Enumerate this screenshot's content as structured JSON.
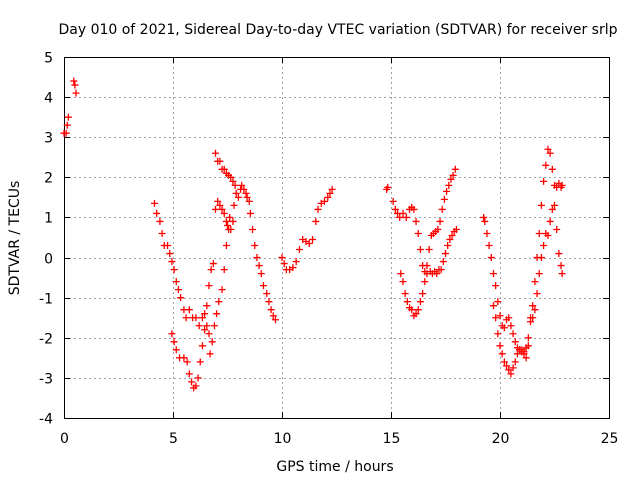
{
  "chart_data": {
    "type": "scatter",
    "title": "Day 010 of 2021, Sidereal Day-to-day VTEC variation (SDTVAR) for receiver srlp",
    "xlabel": "GPS time / hours",
    "ylabel": "SDTVAR / TECUs",
    "xlim": [
      0,
      25
    ],
    "ylim": [
      -4,
      5
    ],
    "xticks": [
      0,
      5,
      10,
      15,
      20,
      25
    ],
    "xtick_labels": [
      "0",
      "5",
      "10",
      "15",
      "20",
      "25"
    ],
    "yticks": [
      -4,
      -3,
      -2,
      -1,
      0,
      1,
      2,
      3,
      4,
      5
    ],
    "ytick_labels": [
      "-4",
      "-3",
      "-2",
      "-1",
      "0",
      "1",
      "2",
      "3",
      "4",
      "5"
    ],
    "grid": true,
    "marker": "plus",
    "color": "#ff0000",
    "series": [
      {
        "segments": [
          [
            [
              0.0,
              3.1
            ],
            [
              0.1,
              3.1
            ],
            [
              0.15,
              3.3
            ],
            [
              0.2,
              3.5
            ]
          ],
          [
            [
              0.45,
              4.4
            ],
            [
              0.5,
              4.3
            ],
            [
              0.55,
              4.1
            ]
          ],
          [
            [
              4.15,
              1.35
            ],
            [
              4.25,
              1.1
            ],
            [
              4.4,
              0.9
            ],
            [
              4.5,
              0.6
            ],
            [
              4.6,
              0.3
            ],
            [
              4.75,
              0.3
            ],
            [
              4.85,
              0.1
            ],
            [
              4.95,
              -0.1
            ],
            [
              5.05,
              -0.3
            ],
            [
              5.15,
              -0.6
            ],
            [
              5.25,
              -0.8
            ],
            [
              5.35,
              -1.0
            ],
            [
              5.5,
              -1.3
            ],
            [
              5.6,
              -1.5
            ],
            [
              5.75,
              -1.3
            ],
            [
              5.9,
              -1.5
            ],
            [
              6.05,
              -1.5
            ],
            [
              6.2,
              -1.7
            ],
            [
              6.35,
              -1.5
            ],
            [
              6.45,
              -1.4
            ],
            [
              6.55,
              -1.7
            ],
            [
              6.65,
              -1.9
            ]
          ],
          [
            [
              4.95,
              -1.9
            ],
            [
              5.05,
              -2.1
            ],
            [
              5.15,
              -2.3
            ],
            [
              5.3,
              -2.5
            ],
            [
              5.5,
              -2.5
            ],
            [
              5.65,
              -2.6
            ],
            [
              5.75,
              -2.9
            ],
            [
              5.85,
              -3.1
            ],
            [
              5.95,
              -3.25
            ],
            [
              6.05,
              -3.2
            ],
            [
              6.15,
              -3.0
            ],
            [
              6.25,
              -2.6
            ],
            [
              6.35,
              -2.2
            ],
            [
              6.45,
              -1.8
            ],
            [
              6.55,
              -1.2
            ],
            [
              6.65,
              -0.7
            ],
            [
              6.75,
              -0.3
            ],
            [
              6.85,
              -0.15
            ]
          ],
          [
            [
              6.7,
              -2.4
            ],
            [
              6.8,
              -2.1
            ],
            [
              6.9,
              -1.7
            ],
            [
              7.0,
              -1.4
            ],
            [
              7.1,
              -1.1
            ],
            [
              7.25,
              -0.8
            ],
            [
              7.35,
              -0.3
            ],
            [
              7.45,
              0.3
            ],
            [
              7.5,
              0.8
            ],
            [
              7.6,
              1.0
            ],
            [
              7.65,
              0.7
            ],
            [
              7.75,
              0.9
            ],
            [
              7.8,
              1.3
            ],
            [
              7.9,
              1.6
            ],
            [
              8.0,
              1.5
            ],
            [
              8.1,
              1.7
            ],
            [
              8.15,
              1.8
            ],
            [
              8.25,
              1.7
            ],
            [
              8.35,
              1.6
            ],
            [
              8.4,
              1.5
            ],
            [
              8.5,
              1.4
            ],
            [
              8.55,
              1.1
            ],
            [
              8.65,
              0.7
            ],
            [
              8.75,
              0.3
            ],
            [
              8.85,
              0.0
            ],
            [
              8.95,
              -0.2
            ],
            [
              9.05,
              -0.4
            ],
            [
              9.15,
              -0.7
            ],
            [
              9.3,
              -0.9
            ],
            [
              9.4,
              -1.1
            ],
            [
              9.5,
              -1.3
            ],
            [
              9.6,
              -1.45
            ],
            [
              9.7,
              -1.55
            ]
          ],
          [
            [
              6.95,
              2.6
            ],
            [
              7.05,
              2.4
            ],
            [
              7.15,
              2.4
            ],
            [
              7.25,
              2.2
            ],
            [
              7.35,
              2.2
            ],
            [
              7.45,
              2.1
            ],
            [
              7.55,
              2.05
            ],
            [
              7.65,
              2.0
            ],
            [
              7.75,
              1.9
            ],
            [
              7.85,
              1.8
            ]
          ],
          [
            [
              6.95,
              1.2
            ],
            [
              7.05,
              1.4
            ],
            [
              7.15,
              1.3
            ],
            [
              7.25,
              1.2
            ],
            [
              7.35,
              1.1
            ],
            [
              7.45,
              0.9
            ],
            [
              7.55,
              0.7
            ]
          ],
          [
            [
              10.0,
              0.0
            ],
            [
              10.1,
              -0.15
            ],
            [
              10.2,
              -0.3
            ],
            [
              10.35,
              -0.3
            ],
            [
              10.5,
              -0.25
            ],
            [
              10.65,
              -0.1
            ],
            [
              10.8,
              0.2
            ],
            [
              10.95,
              0.45
            ],
            [
              11.1,
              0.4
            ],
            [
              11.25,
              0.35
            ],
            [
              11.4,
              0.45
            ],
            [
              11.55,
              0.9
            ],
            [
              11.65,
              1.2
            ],
            [
              11.8,
              1.35
            ],
            [
              11.95,
              1.4
            ],
            [
              12.1,
              1.5
            ],
            [
              12.2,
              1.6
            ],
            [
              12.3,
              1.7
            ]
          ],
          [
            [
              14.8,
              1.7
            ],
            [
              14.85,
              1.75
            ]
          ],
          [
            [
              15.1,
              1.4
            ],
            [
              15.2,
              1.2
            ],
            [
              15.3,
              1.1
            ],
            [
              15.4,
              1.0
            ],
            [
              15.55,
              1.1
            ],
            [
              15.7,
              1.0
            ],
            [
              15.85,
              1.2
            ],
            [
              15.95,
              1.25
            ],
            [
              16.05,
              1.2
            ],
            [
              16.15,
              0.9
            ],
            [
              16.25,
              0.6
            ],
            [
              16.35,
              0.2
            ],
            [
              16.45,
              -0.2
            ],
            [
              16.55,
              -0.35
            ],
            [
              16.65,
              -0.4
            ],
            [
              16.8,
              -0.35
            ],
            [
              16.9,
              -0.4
            ],
            [
              17.0,
              -0.35
            ],
            [
              17.1,
              -0.4
            ],
            [
              17.2,
              -0.3
            ]
          ],
          [
            [
              15.45,
              -0.4
            ],
            [
              15.55,
              -0.6
            ],
            [
              15.65,
              -0.9
            ],
            [
              15.75,
              -1.1
            ],
            [
              15.85,
              -1.25
            ],
            [
              15.95,
              -1.3
            ],
            [
              16.05,
              -1.45
            ],
            [
              16.15,
              -1.4
            ],
            [
              16.25,
              -1.3
            ],
            [
              16.35,
              -1.1
            ],
            [
              16.45,
              -0.9
            ],
            [
              16.55,
              -0.6
            ],
            [
              16.65,
              -0.2
            ],
            [
              16.75,
              0.2
            ],
            [
              16.85,
              0.55
            ],
            [
              16.95,
              0.6
            ],
            [
              17.05,
              0.65
            ],
            [
              17.15,
              0.7
            ],
            [
              17.25,
              0.9
            ],
            [
              17.35,
              1.2
            ],
            [
              17.45,
              1.45
            ],
            [
              17.55,
              1.65
            ],
            [
              17.65,
              1.8
            ],
            [
              17.75,
              1.95
            ],
            [
              17.85,
              2.05
            ],
            [
              17.95,
              2.2
            ]
          ],
          [
            [
              17.3,
              -0.3
            ],
            [
              17.4,
              -0.1
            ],
            [
              17.5,
              0.1
            ],
            [
              17.6,
              0.3
            ],
            [
              17.7,
              0.45
            ],
            [
              17.8,
              0.55
            ],
            [
              17.9,
              0.65
            ],
            [
              18.0,
              0.7
            ]
          ],
          [
            [
              19.25,
              1.0
            ],
            [
              19.3,
              0.9
            ],
            [
              19.4,
              0.6
            ],
            [
              19.5,
              0.3
            ],
            [
              19.6,
              0.0
            ],
            [
              19.7,
              -0.4
            ],
            [
              19.8,
              -0.7
            ],
            [
              19.9,
              -1.1
            ],
            [
              20.0,
              -1.45
            ],
            [
              20.1,
              -1.7
            ],
            [
              20.2,
              -1.75
            ],
            [
              20.3,
              -1.55
            ],
            [
              20.4,
              -1.5
            ],
            [
              20.5,
              -1.7
            ],
            [
              20.6,
              -1.9
            ],
            [
              20.7,
              -2.1
            ],
            [
              20.8,
              -2.25
            ],
            [
              20.9,
              -2.3
            ],
            [
              21.0,
              -2.3
            ],
            [
              21.1,
              -2.35
            ],
            [
              21.2,
              -2.25
            ],
            [
              21.3,
              -2.0
            ],
            [
              21.4,
              -1.6
            ],
            [
              21.5,
              -1.2
            ],
            [
              21.6,
              -0.6
            ],
            [
              21.7,
              0.0
            ],
            [
              21.8,
              0.6
            ],
            [
              21.9,
              1.3
            ],
            [
              22.0,
              1.9
            ],
            [
              22.1,
              2.3
            ],
            [
              22.2,
              2.7
            ],
            [
              22.3,
              2.6
            ],
            [
              22.4,
              2.2
            ]
          ],
          [
            [
              19.7,
              -1.2
            ],
            [
              19.8,
              -1.5
            ],
            [
              19.9,
              -1.9
            ],
            [
              20.0,
              -2.2
            ],
            [
              20.1,
              -2.4
            ],
            [
              20.2,
              -2.6
            ],
            [
              20.3,
              -2.7
            ],
            [
              20.4,
              -2.8
            ],
            [
              20.5,
              -2.9
            ],
            [
              20.6,
              -2.75
            ],
            [
              20.7,
              -2.6
            ],
            [
              20.8,
              -2.4
            ],
            [
              20.9,
              -2.3
            ],
            [
              21.0,
              -2.35
            ],
            [
              21.1,
              -2.4
            ],
            [
              21.2,
              -2.5
            ],
            [
              21.3,
              -2.2
            ],
            [
              21.4,
              -1.5
            ],
            [
              21.5,
              -1.5
            ],
            [
              21.6,
              -1.3
            ],
            [
              21.7,
              -0.9
            ],
            [
              21.8,
              -0.4
            ],
            [
              21.9,
              0.0
            ],
            [
              22.0,
              0.3
            ],
            [
              22.1,
              0.6
            ],
            [
              22.2,
              0.55
            ],
            [
              22.3,
              0.9
            ],
            [
              22.4,
              1.2
            ],
            [
              22.5,
              1.3
            ],
            [
              22.6,
              0.7
            ],
            [
              22.7,
              0.1
            ],
            [
              22.8,
              -0.2
            ],
            [
              22.85,
              -0.4
            ]
          ],
          [
            [
              22.5,
              1.8
            ],
            [
              22.6,
              1.75
            ],
            [
              22.7,
              1.85
            ],
            [
              22.8,
              1.75
            ],
            [
              22.85,
              1.8
            ]
          ]
        ]
      }
    ]
  }
}
